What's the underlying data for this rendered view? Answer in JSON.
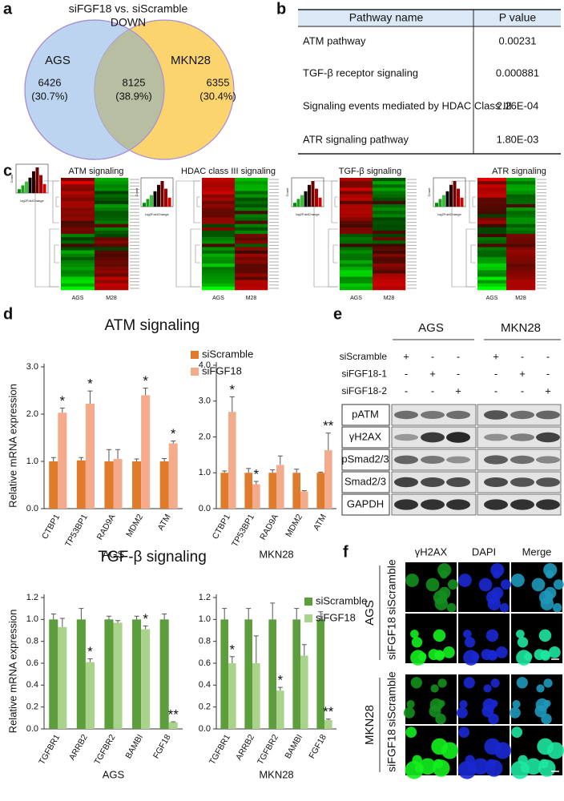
{
  "panel_labels": [
    "a",
    "b",
    "c",
    "d",
    "e",
    "f"
  ],
  "venn": {
    "title": "siFGF18 vs. siScramble",
    "subtitle": "DOWN",
    "sets": [
      "AGS",
      "MKN28"
    ],
    "regions": [
      {
        "count": "6426",
        "percent": "(30.7%)"
      },
      {
        "count": "8125",
        "percent": "(38.9%)"
      },
      {
        "count": "6355",
        "percent": "(30.4%)"
      }
    ]
  },
  "table": {
    "header": [
      "Pathway name",
      "P value"
    ],
    "rows": [
      [
        "ATM pathway",
        "0.00231"
      ],
      [
        "TGF-β receptor signaling",
        "0.000881"
      ],
      [
        "Signaling events mediated by HDAC Class III",
        "2.26E-04"
      ],
      [
        "ATR signaling pathway",
        "1.80E-03"
      ]
    ]
  },
  "heatmaps": {
    "hist_ylabel": "Count",
    "hist_xlabel": "log2FoldChange",
    "panels": [
      {
        "title": "ATM signaling",
        "columns": [
          "AGS",
          "M28"
        ]
      },
      {
        "title": "HDAC class III signaling",
        "columns": [
          "AGS",
          "M28"
        ]
      },
      {
        "title": "TGF-β signaling",
        "columns": [
          "AGS",
          "M28"
        ]
      },
      {
        "title": "ATR signaling",
        "columns": [
          "AGS",
          "M28"
        ]
      }
    ]
  },
  "section_titles": [
    "ATM signaling",
    "TGF-β signaling"
  ],
  "chart_data": [
    {
      "type": "bar",
      "ylabel": "Relative mRNA expression",
      "xlabel": "AGS",
      "legend": "right",
      "categories": [
        "CTBP1",
        "TP53BP1",
        "RAD9A",
        "MDM2",
        "ATM"
      ],
      "ylim": [
        0,
        3
      ],
      "yticks": [
        {
          "value": 0,
          "label": "0.0"
        },
        {
          "value": 1,
          "label": "1.0"
        },
        {
          "value": 2,
          "label": "2.0"
        },
        {
          "value": 3,
          "label": "3.0"
        }
      ],
      "series": [
        {
          "name": "siScramble",
          "color": "#e07b2b",
          "values": [
            1,
            1.02,
            1,
            1,
            1
          ],
          "errors": [
            0.08,
            0.06,
            0.25,
            0.05,
            0.06
          ]
        },
        {
          "name": "siFGF18",
          "color": "#f4ab8c",
          "values": [
            2.03,
            2.22,
            1.05,
            2.4,
            1.38
          ],
          "errors": [
            0.1,
            0.27,
            0.2,
            0.15,
            0.05
          ],
          "significance": [
            "*",
            "*",
            null,
            "*",
            "*"
          ]
        }
      ]
    },
    {
      "type": "bar",
      "xlabel": "MKN28",
      "categories": [
        "CTBP1",
        "TP53BP1",
        "RAD9A",
        "MDM2",
        "ATM"
      ],
      "ylim": [
        0,
        4
      ],
      "yticks": [
        {
          "value": 0,
          "label": "0.0"
        },
        {
          "value": 1,
          "label": "1.0"
        },
        {
          "value": 2,
          "label": "2.0"
        },
        {
          "value": 3,
          "label": "3.0"
        },
        {
          "value": 4,
          "label": "4.0"
        }
      ],
      "series": [
        {
          "color": "#e07b2b",
          "values": [
            1,
            1,
            1,
            1,
            1
          ],
          "errors": [
            0.05,
            0.12,
            0.08,
            0.1,
            0.02
          ]
        },
        {
          "color": "#f4ab8c",
          "values": [
            2.7,
            0.68,
            1.22,
            0.48,
            1.63
          ],
          "errors": [
            0.42,
            0.08,
            0.25,
            0.02,
            0.48
          ],
          "significance": [
            "*",
            "*",
            null,
            null,
            "**"
          ]
        }
      ]
    },
    {
      "type": "bar",
      "ylabel": "Relative mRNA expression",
      "xlabel": "AGS",
      "categories": [
        "TGFBR1",
        "ARRB2",
        "TGFBR2",
        "BAMBI",
        "FGF18"
      ],
      "ylim": [
        0,
        1.2
      ],
      "yticks": [
        {
          "value": 0,
          "label": "0.0"
        },
        0.2,
        0.4,
        0.6,
        0.8,
        {
          "value": 1,
          "label": "1.0"
        },
        1.2
      ],
      "series": [
        {
          "color": "#5c9e3c",
          "values": [
            1,
            1,
            1,
            1,
            1
          ],
          "errors": [
            0.05,
            0.1,
            0.03,
            0.03,
            0.05
          ]
        },
        {
          "color": "#a9d38b",
          "values": [
            0.93,
            0.61,
            0.97,
            0.91,
            0.06
          ],
          "errors": [
            0.08,
            0.03,
            0.02,
            0.03,
            0.005
          ],
          "significance": [
            null,
            "*",
            null,
            "*",
            "**"
          ]
        }
      ]
    },
    {
      "type": "bar",
      "xlabel": "MKN28",
      "legend": "upper right",
      "categories": [
        "TGFBR1",
        "ARRB2",
        "TGFBR2",
        "BAMBI",
        "FGF18"
      ],
      "ylim": [
        0,
        1.2
      ],
      "yticks": [
        {
          "value": 0,
          "label": "0.0"
        },
        0.2,
        0.4,
        0.6,
        0.8,
        {
          "value": 1,
          "label": "1.0"
        },
        1.2
      ],
      "series": [
        {
          "name": "siScramble",
          "color": "#5c9e3c",
          "values": [
            1,
            1,
            1,
            1,
            1
          ],
          "errors": [
            0.1,
            0.1,
            0.15,
            0.1,
            0.07
          ]
        },
        {
          "name": "siFGF18",
          "color": "#a9d38b",
          "values": [
            0.6,
            0.6,
            0.35,
            0.67,
            0.08
          ],
          "errors": [
            0.06,
            0.25,
            0.03,
            0.1,
            0.01
          ],
          "significance": [
            "*",
            null,
            "*",
            null,
            "**"
          ]
        }
      ]
    }
  ],
  "western": {
    "cell_lines": [
      "AGS",
      "MKN28"
    ],
    "conditions": [
      {
        "label": "siScramble",
        "marks": [
          "+",
          "-",
          "-",
          "+",
          "-",
          "-"
        ]
      },
      {
        "label": "siFGF18-1",
        "marks": [
          "-",
          "+",
          "-",
          "-",
          "+",
          "-"
        ]
      },
      {
        "label": "siFGF18-2",
        "marks": [
          "-",
          "-",
          "+",
          "-",
          "-",
          "+"
        ]
      }
    ],
    "proteins": [
      "pATM",
      "γH2AX",
      "pSmad2/3",
      "Smad2/3",
      "GAPDH"
    ]
  },
  "imaging": {
    "channels": [
      "γH2AX",
      "DAPI",
      "Merge"
    ],
    "cell_lines": [
      {
        "name": "AGS",
        "conditions": [
          "siScramble",
          "siFGF18"
        ]
      },
      {
        "name": "MKN28",
        "conditions": [
          "siScramble",
          "siFGF18"
        ]
      }
    ]
  }
}
